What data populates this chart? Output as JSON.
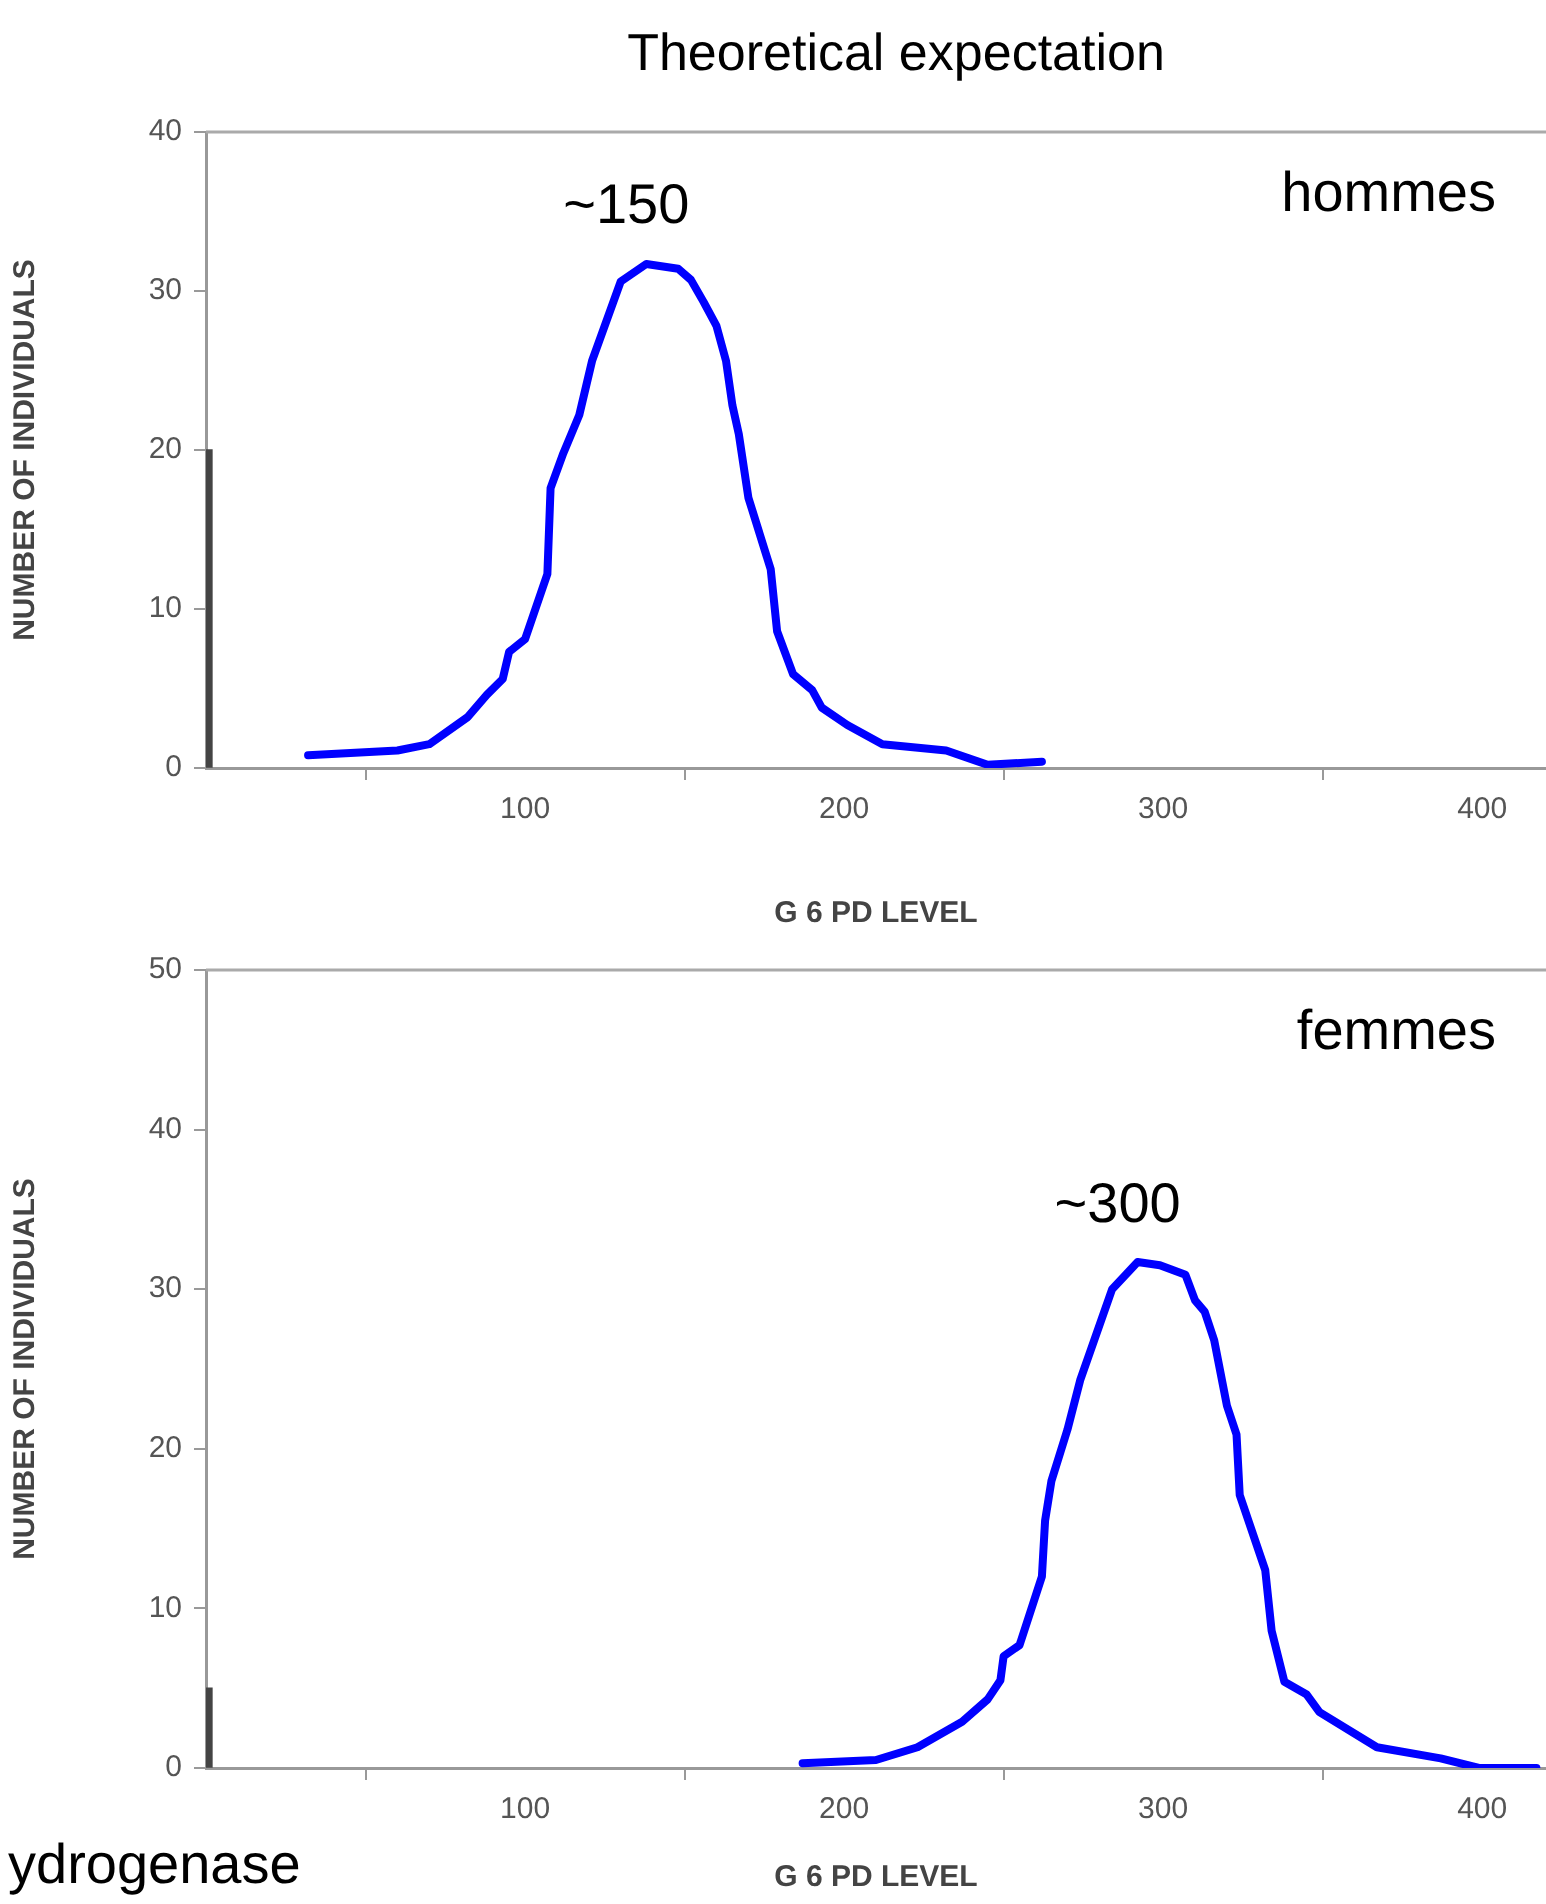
{
  "chart_data": [
    {
      "type": "line",
      "title": "Theoretical expectation",
      "xlabel": "G 6 PD LEVEL",
      "ylabel": "NUMBER OF INDIVIDUALS",
      "xlim": [
        0,
        420
      ],
      "xticks": [
        100,
        200,
        300,
        400
      ],
      "ylim": [
        0,
        40
      ],
      "yticks": [
        0,
        10,
        20,
        30,
        40
      ],
      "grid": false,
      "legend": false,
      "marker": "none",
      "line_style": "solid",
      "series": [
        {
          "type": "bar",
          "color": "#444444",
          "x": [
            0
          ],
          "values": [
            20
          ]
        },
        {
          "color": "#0000ff",
          "x": [
            32,
            60,
            70,
            82,
            88,
            93,
            95,
            100,
            107,
            108,
            112,
            117,
            121,
            130,
            138,
            148,
            152,
            156,
            160,
            163,
            165,
            167,
            170,
            177,
            179,
            184,
            190,
            193,
            201,
            212,
            232,
            245,
            262
          ],
          "values": [
            0.8,
            1.1,
            1.5,
            3.2,
            4.6,
            5.6,
            7.3,
            8.1,
            12.2,
            17.6,
            19.8,
            22.2,
            25.6,
            30.6,
            31.7,
            31.4,
            30.7,
            29.3,
            27.8,
            25.6,
            22.8,
            21.0,
            17.0,
            12.5,
            8.6,
            5.9,
            4.9,
            3.8,
            2.7,
            1.5,
            1.1,
            0.2,
            0.4
          ]
        }
      ],
      "annotations": [
        "~150",
        "hommes"
      ]
    },
    {
      "type": "line",
      "xlabel": "G 6 PD LEVEL",
      "ylabel": "NUMBER OF INDIVIDUALS",
      "xlim": [
        0,
        420
      ],
      "xticks": [
        100,
        200,
        300,
        400
      ],
      "ylim": [
        0,
        50
      ],
      "yticks": [
        0,
        10,
        20,
        30,
        40,
        50
      ],
      "grid": false,
      "legend": false,
      "marker": "none",
      "line_style": "solid",
      "series": [
        {
          "type": "bar",
          "color": "#444444",
          "x": [
            0
          ],
          "values": [
            5
          ]
        },
        {
          "color": "#0000ff",
          "x": [
            187,
            210,
            223,
            237,
            245,
            249,
            250,
            255,
            262,
            263,
            265,
            270,
            274,
            284,
            292,
            299,
            307,
            310,
            313,
            316,
            320,
            323,
            324,
            332,
            334,
            338,
            345,
            349,
            367,
            387,
            399,
            417
          ],
          "values": [
            0.3,
            0.5,
            1.3,
            2.9,
            4.3,
            5.5,
            7.0,
            7.7,
            12.0,
            15.5,
            18.0,
            21.2,
            24.3,
            30.0,
            31.7,
            31.5,
            30.9,
            29.3,
            28.6,
            26.8,
            22.7,
            20.9,
            17.1,
            12.4,
            8.6,
            5.4,
            4.6,
            3.5,
            1.3,
            0.6,
            0,
            0
          ]
        }
      ],
      "annotations": [
        "~300",
        "femmes",
        "ydrogenase"
      ]
    }
  ]
}
